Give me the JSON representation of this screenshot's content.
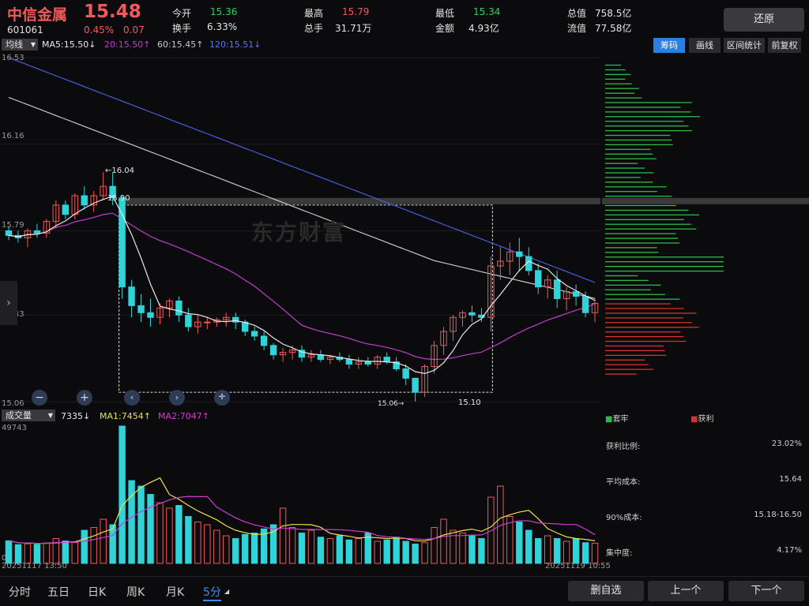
{
  "stock": {
    "name": "中信金属",
    "code": "601061",
    "price": "15.48",
    "change_pct": "0.45%",
    "change": "0.07"
  },
  "quote": {
    "open_label": "今开",
    "open": "15.36",
    "turnover_label": "换手",
    "turnover": "6.33%",
    "high_label": "最高",
    "high": "15.79",
    "volume_label": "总手",
    "volume": "31.71万",
    "low_label": "最低",
    "low": "15.34",
    "amount_label": "金额",
    "amount": "4.93亿",
    "mktcap_label": "总值",
    "mktcap": "758.5亿",
    "float_label": "流值",
    "float": "77.58亿"
  },
  "restore_button": "还原",
  "toolbar": {
    "ma_select": "均线",
    "ma5": "MA5:15.50↓",
    "ma20": "20:15.50↑",
    "ma60": "60:15.45↑",
    "ma120": "120:15.51↓",
    "chip_button": "筹码",
    "draw_button": "画线",
    "range_button": "区间统计",
    "adjust_button": "前复权"
  },
  "price_axis": [
    "16.53",
    "16.16",
    "15.79",
    "15.43",
    "15.06"
  ],
  "annotations": {
    "high": "16.04",
    "box_top": "15.90",
    "low": "15.06",
    "box_bottom": "15.10"
  },
  "watermark": "东方财富",
  "volume": {
    "select": "成交量",
    "current": "7335↓",
    "ma1": "MA1:7454↑",
    "ma2": "MA2:7047↑",
    "max": "49743",
    "min": "0",
    "start_date": "20251117 13:50",
    "end_date": "20251119 10:55"
  },
  "chip_stats": {
    "legend_trapped": "套牢",
    "legend_profit": "获利",
    "rows": [
      {
        "label": "获利比例:",
        "value": "23.02%"
      },
      {
        "label": "平均成本:",
        "value": "15.64"
      },
      {
        "label": "90%成本:",
        "value": "15.18-16.50"
      },
      {
        "label": "集中度:",
        "value": "4.17%"
      }
    ]
  },
  "periods": [
    "分时",
    "五日",
    "日K",
    "周K",
    "月K",
    "5分"
  ],
  "active_period": "5分",
  "bottom_buttons": {
    "remove": "删自选",
    "prev": "上一个",
    "next": "下一个"
  },
  "colors": {
    "up": "#f05a5a",
    "down": "#2fd3d8",
    "ma5": "#e8e8e8",
    "ma20": "#c43bd0",
    "ma60": "#c8c8c8",
    "ma120": "#4a5ee0",
    "vma1": "#f0e04a",
    "vma2": "#d03bd0",
    "chip_profit": "#2fb84a",
    "chip_trapped": "#d83030",
    "accent": "#2a7fe0"
  },
  "chart_data": {
    "type": "candlestick",
    "candles": [
      [
        15.79,
        15.81,
        15.75,
        15.77
      ],
      [
        15.77,
        15.79,
        15.74,
        15.76
      ],
      [
        15.76,
        15.8,
        15.72,
        15.79
      ],
      [
        15.79,
        15.82,
        15.76,
        15.78
      ],
      [
        15.78,
        15.84,
        15.76,
        15.83
      ],
      [
        15.83,
        15.92,
        15.8,
        15.9
      ],
      [
        15.9,
        15.92,
        15.84,
        15.86
      ],
      [
        15.86,
        15.95,
        15.84,
        15.94
      ],
      [
        15.94,
        15.98,
        15.88,
        15.9
      ],
      [
        15.9,
        15.96,
        15.87,
        15.94
      ],
      [
        15.94,
        16.04,
        15.92,
        15.98
      ],
      [
        15.98,
        16.04,
        15.9,
        15.93
      ],
      [
        15.93,
        15.94,
        15.5,
        15.55
      ],
      [
        15.55,
        15.58,
        15.42,
        15.47
      ],
      [
        15.47,
        15.52,
        15.4,
        15.44
      ],
      [
        15.44,
        15.5,
        15.38,
        15.42
      ],
      [
        15.42,
        15.48,
        15.39,
        15.46
      ],
      [
        15.46,
        15.5,
        15.42,
        15.49
      ],
      [
        15.49,
        15.51,
        15.4,
        15.43
      ],
      [
        15.43,
        15.46,
        15.36,
        15.38
      ],
      [
        15.38,
        15.43,
        15.35,
        15.4
      ],
      [
        15.4,
        15.42,
        15.37,
        15.4
      ],
      [
        15.4,
        15.42,
        15.38,
        15.41
      ],
      [
        15.41,
        15.44,
        15.38,
        15.42
      ],
      [
        15.42,
        15.44,
        15.37,
        15.4
      ],
      [
        15.4,
        15.41,
        15.34,
        15.36
      ],
      [
        15.36,
        15.38,
        15.32,
        15.34
      ],
      [
        15.34,
        15.36,
        15.28,
        15.3
      ],
      [
        15.3,
        15.31,
        15.24,
        15.26
      ],
      [
        15.26,
        15.29,
        15.23,
        15.27
      ],
      [
        15.27,
        15.3,
        15.24,
        15.28
      ],
      [
        15.28,
        15.3,
        15.23,
        15.25
      ],
      [
        15.25,
        15.28,
        15.23,
        15.26
      ],
      [
        15.26,
        15.28,
        15.23,
        15.24
      ],
      [
        15.24,
        15.26,
        15.22,
        15.25
      ],
      [
        15.25,
        15.27,
        15.23,
        15.24
      ],
      [
        15.24,
        15.26,
        15.2,
        15.22
      ],
      [
        15.22,
        15.25,
        15.2,
        15.23
      ],
      [
        15.23,
        15.25,
        15.21,
        15.22
      ],
      [
        15.22,
        15.26,
        15.2,
        15.25
      ],
      [
        15.25,
        15.27,
        15.22,
        15.23
      ],
      [
        15.23,
        15.25,
        15.19,
        15.2
      ],
      [
        15.2,
        15.22,
        15.13,
        15.16
      ],
      [
        15.16,
        15.16,
        15.06,
        15.1
      ],
      [
        15.1,
        15.22,
        15.08,
        15.21
      ],
      [
        15.21,
        15.32,
        15.18,
        15.3
      ],
      [
        15.3,
        15.38,
        15.26,
        15.36
      ],
      [
        15.36,
        15.43,
        15.32,
        15.42
      ],
      [
        15.42,
        15.45,
        15.38,
        15.44
      ],
      [
        15.44,
        15.47,
        15.4,
        15.43
      ],
      [
        15.43,
        15.46,
        15.4,
        15.42
      ],
      [
        15.42,
        15.68,
        15.36,
        15.64
      ],
      [
        15.64,
        15.72,
        15.58,
        15.66
      ],
      [
        15.66,
        15.74,
        15.6,
        15.7
      ],
      [
        15.7,
        15.76,
        15.62,
        15.68
      ],
      [
        15.68,
        15.72,
        15.6,
        15.62
      ],
      [
        15.62,
        15.65,
        15.52,
        15.55
      ],
      [
        15.55,
        15.6,
        15.5,
        15.58
      ],
      [
        15.58,
        15.62,
        15.46,
        15.5
      ],
      [
        15.5,
        15.55,
        15.45,
        15.53
      ],
      [
        15.53,
        15.56,
        15.47,
        15.51
      ],
      [
        15.51,
        15.53,
        15.42,
        15.44
      ],
      [
        15.44,
        15.5,
        15.4,
        15.48
      ]
    ],
    "volumes": [
      8200,
      6800,
      7100,
      6900,
      7400,
      9000,
      8100,
      7600,
      12000,
      13000,
      16000,
      14000,
      49743,
      30000,
      28000,
      25000,
      22000,
      20000,
      21000,
      17000,
      15000,
      14000,
      12000,
      10000,
      9000,
      10500,
      11000,
      12500,
      14000,
      20000,
      13000,
      11000,
      12000,
      9500,
      9000,
      10000,
      8500,
      9000,
      11000,
      8000,
      8500,
      9500,
      8000,
      7000,
      7500,
      13000,
      16000,
      12000,
      11000,
      10000,
      9000,
      24000,
      28000,
      17000,
      15000,
      12000,
      9000,
      10000,
      9000,
      8000,
      9000,
      7500,
      7335
    ],
    "price_range": [
      15.06,
      16.53
    ],
    "x_start": "20251117 13:50",
    "x_end": "20251119 10:55"
  }
}
